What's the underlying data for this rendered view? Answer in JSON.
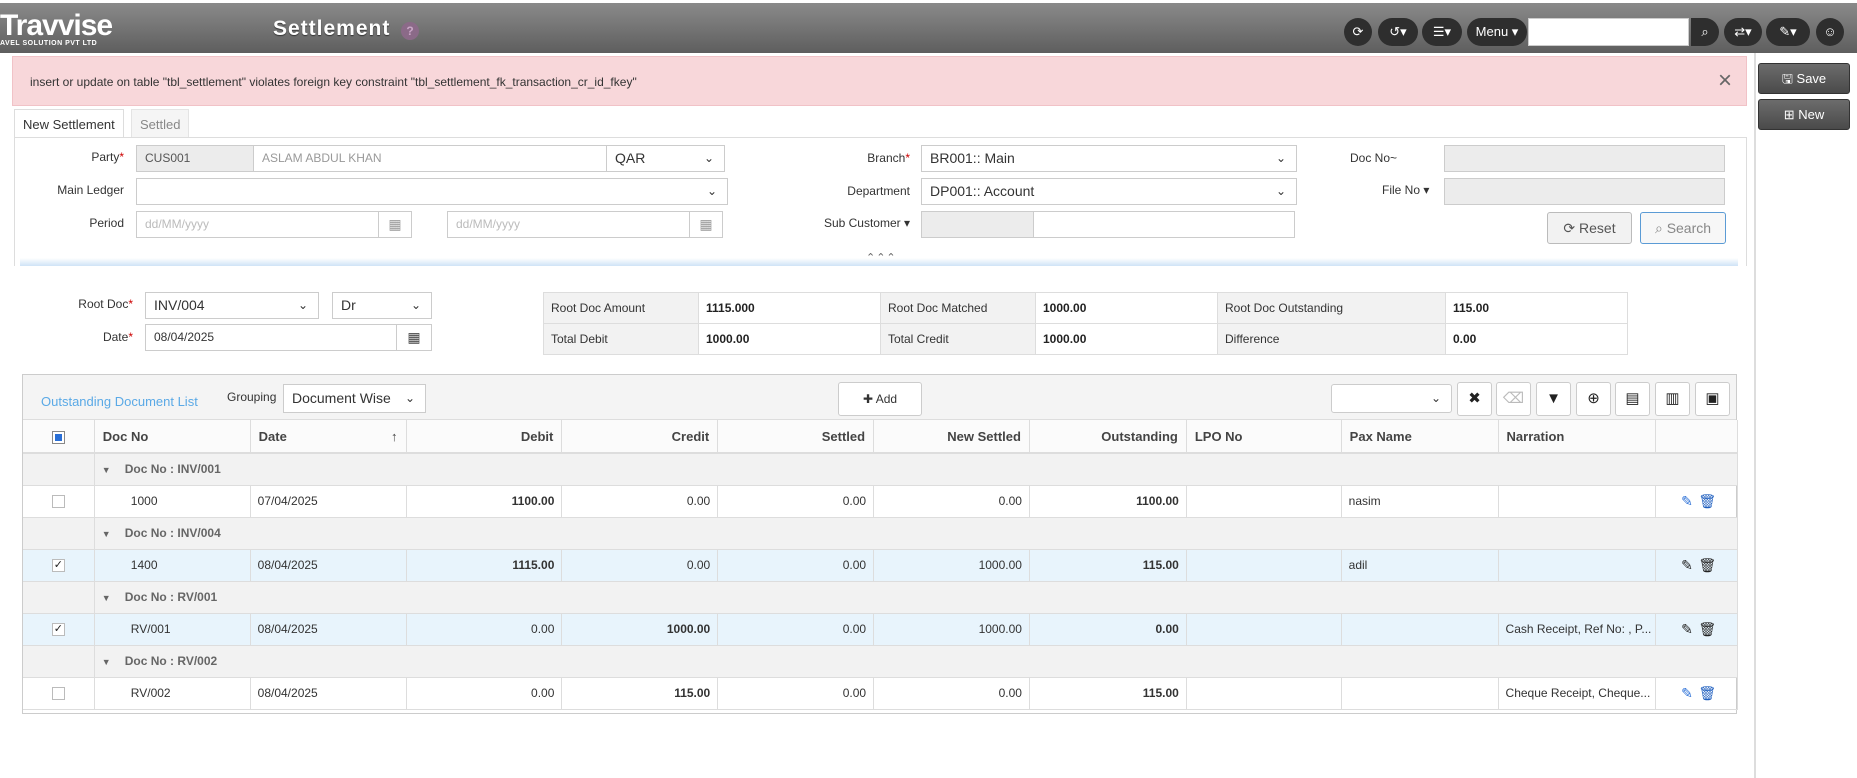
{
  "app": {
    "logo": "Travvise",
    "logo_sub": "AVEL SOLUTION PVT LTD",
    "title": "Settlement",
    "help": "?"
  },
  "topbar": {
    "menu_label": "Menu",
    "search_placeholder": ""
  },
  "sidebar": {
    "save_label": "Save",
    "new_label": "New"
  },
  "alert": {
    "message": "insert or update on table \"tbl_settlement\" violates foreign key constraint \"tbl_settlement_fk_transaction_cr_id_fkey\"",
    "close": "×"
  },
  "tabs": [
    {
      "label": "New Settlement"
    },
    {
      "label": "Settled"
    }
  ],
  "filters": {
    "party_label": "Party",
    "party_code": "CUS001",
    "party_name": "ASLAM ABDUL KHAN",
    "currency": "QAR",
    "main_ledger_label": "Main Ledger",
    "main_ledger_value": "",
    "period_label": "Period",
    "period_from_placeholder": "dd/MM/yyyy",
    "period_to_placeholder": "dd/MM/yyyy",
    "branch_label": "Branch",
    "branch_value": "BR001:: Main",
    "department_label": "Department",
    "department_value": "DP001:: Account",
    "sub_customer_label": "Sub Customer",
    "doc_no_label": "Doc No~",
    "file_no_label": "File No",
    "reset_label": "Reset",
    "search_label": "Search"
  },
  "root": {
    "root_doc_label": "Root Doc",
    "root_doc_value": "INV/004",
    "drcr_value": "Dr",
    "date_label": "Date",
    "date_value": "08/04/2025"
  },
  "summary": {
    "root_doc_amount_label": "Root Doc Amount",
    "root_doc_amount": "1115.000",
    "root_doc_matched_label": "Root Doc Matched",
    "root_doc_matched": "1000.00",
    "root_doc_outstanding_label": "Root Doc Outstanding",
    "root_doc_outstanding": "115.00",
    "total_debit_label": "Total Debit",
    "total_debit": "1000.00",
    "total_credit_label": "Total Credit",
    "total_credit": "1000.00",
    "difference_label": "Difference",
    "difference": "0.00"
  },
  "grid": {
    "title": "Outstanding Document List",
    "grouping_label": "Grouping",
    "grouping_value": "Document Wise",
    "add_label": "Add",
    "columns": [
      "Doc No",
      "Date",
      "Debit",
      "Credit",
      "Settled",
      "New Settled",
      "Outstanding",
      "LPO No",
      "Pax Name",
      "Narration"
    ],
    "groups": [
      {
        "label": "Doc No : INV/001",
        "row": {
          "checked": false,
          "doc_no": "1000",
          "date": "07/04/2025",
          "debit": "1100.00",
          "credit": "0.00",
          "settled": "0.00",
          "new_settled": "0.00",
          "outstanding": "1100.00",
          "lpo": "",
          "pax": "nasim",
          "narration": ""
        }
      },
      {
        "label": "Doc No : INV/004",
        "row": {
          "checked": true,
          "doc_no": "1400",
          "date": "08/04/2025",
          "debit": "1115.00",
          "credit": "0.00",
          "settled": "0.00",
          "new_settled": "1000.00",
          "outstanding": "115.00",
          "lpo": "",
          "pax": "adil",
          "narration": ""
        }
      },
      {
        "label": "Doc No : RV/001",
        "row": {
          "checked": true,
          "doc_no": "RV/001",
          "date": "08/04/2025",
          "debit": "0.00",
          "credit": "1000.00",
          "settled": "0.00",
          "new_settled": "1000.00",
          "outstanding": "0.00",
          "lpo": "",
          "pax": "",
          "narration": "Cash Receipt, Ref No: , P..."
        }
      },
      {
        "label": "Doc No : RV/002",
        "row": {
          "checked": false,
          "doc_no": "RV/002",
          "date": "08/04/2025",
          "debit": "0.00",
          "credit": "115.00",
          "settled": "0.00",
          "new_settled": "0.00",
          "outstanding": "115.00",
          "lpo": "",
          "pax": "",
          "narration": "Cheque Receipt, Cheque..."
        }
      }
    ]
  }
}
